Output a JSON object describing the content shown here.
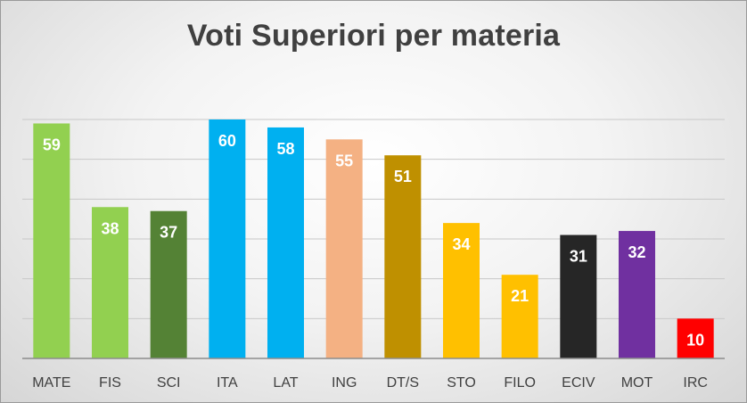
{
  "chart_data": {
    "type": "bar",
    "title": "Voti Superiori per materia",
    "xlabel": "",
    "ylabel": "",
    "ylim": [
      0,
      60
    ],
    "grid": true,
    "legend": "none",
    "categories": [
      "MATE",
      "FIS",
      "SCI",
      "ITA",
      "LAT",
      "ING",
      "DT/S",
      "STO",
      "FILO",
      "ECIV",
      "MOT",
      "IRC"
    ],
    "values": [
      59,
      38,
      37,
      60,
      58,
      55,
      51,
      34,
      21,
      31,
      32,
      10
    ],
    "colors": [
      "#92D050",
      "#92D050",
      "#548235",
      "#00B0F0",
      "#00B0F0",
      "#F4B183",
      "#BF9000",
      "#FFC000",
      "#FFC000",
      "#262626",
      "#7030A0",
      "#FF0000"
    ],
    "label_colors": [
      "#FFFFFF",
      "#FFFFFF",
      "#FFFFFF",
      "#FFFFFF",
      "#FFFFFF",
      "#FFFFFF",
      "#FFFFFF",
      "#FFFFFF",
      "#FFFFFF",
      "#FFFFFF",
      "#FFFFFF",
      "#FFFFFF"
    ]
  }
}
